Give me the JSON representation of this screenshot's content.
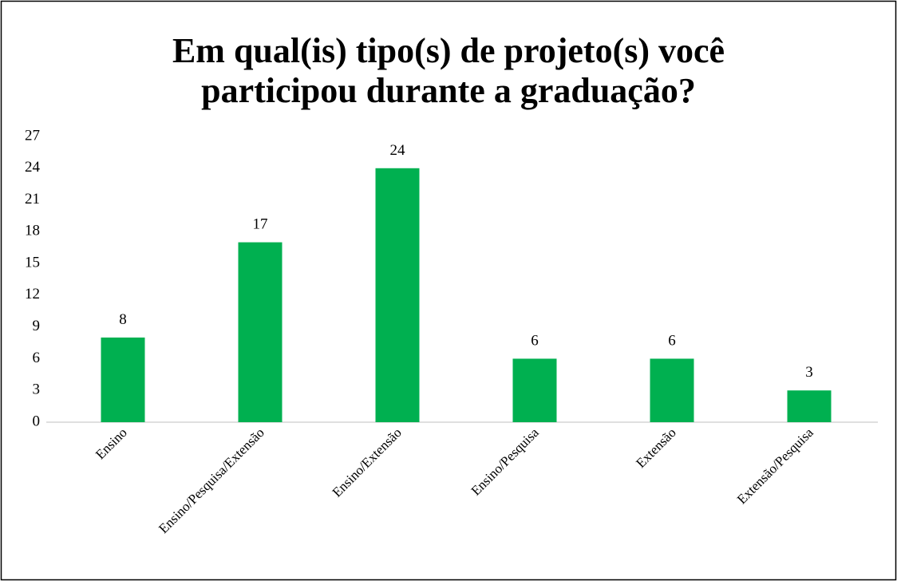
{
  "chart_data": {
    "type": "bar",
    "title": [
      "Em qual(is) tipo(s) de projeto(s) você",
      "participou durante a graduação?"
    ],
    "categories": [
      "Ensino",
      "Ensino/Pesquisa/Extensão",
      "Ensino/Extensão",
      "Ensino/Pesquisa",
      "Extensão",
      "Extensão/Pesquisa"
    ],
    "values": [
      8,
      17,
      24,
      6,
      6,
      3
    ],
    "color": "#00b050",
    "ylim": [
      0,
      27
    ],
    "yticks": [
      0,
      3,
      6,
      9,
      12,
      15,
      18,
      21,
      24,
      27
    ],
    "grid": false
  }
}
